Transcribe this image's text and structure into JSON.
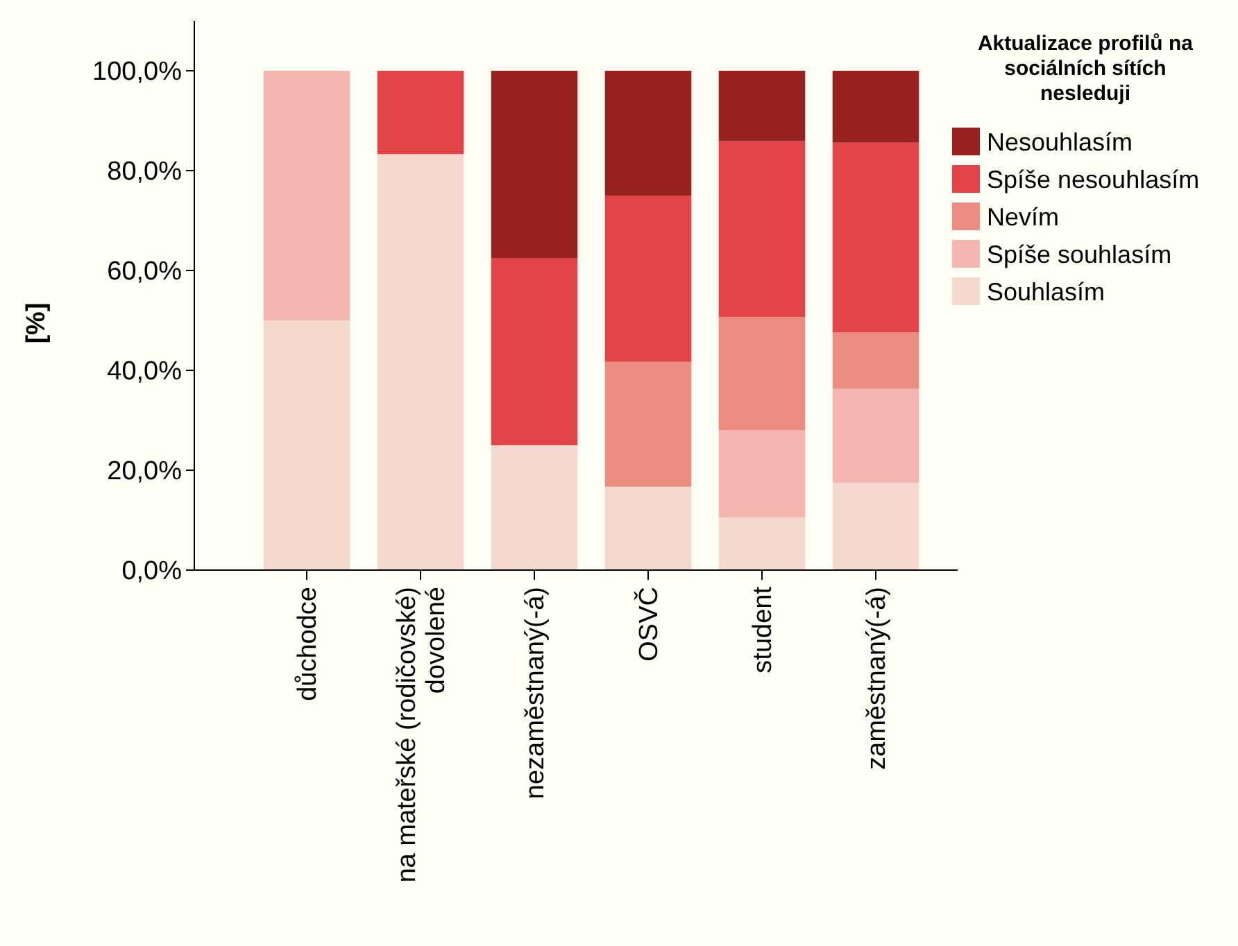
{
  "chart_data": {
    "type": "bar",
    "stacked": true,
    "ylabel": "[%]",
    "legend_title": "Aktualizace profilů na sociálních sítích nesleduji",
    "legend": "right",
    "grid": false,
    "categories": [
      "důchodce",
      "na mateřské (rodičovské) dovolené",
      "nezaměstnaný(-á)",
      "OSVČ",
      "student",
      "zaměstnaný(-á)"
    ],
    "ylim": [
      0,
      110
    ],
    "yticks": [
      {
        "value": 0,
        "label": "0,0%"
      },
      {
        "value": 20,
        "label": "20,0%"
      },
      {
        "value": 40,
        "label": "40,0%"
      },
      {
        "value": 60,
        "label": "60,0%"
      },
      {
        "value": 80,
        "label": "80,0%"
      },
      {
        "value": 100,
        "label": "100,0%"
      }
    ],
    "series": [
      {
        "name": "Souhlasím",
        "color": "#f6d9ce",
        "values": [
          50,
          83.3,
          25,
          16.7,
          10.5,
          17.5
        ]
      },
      {
        "name": "Spíše souhlasím",
        "color": "#f5b5b1",
        "values": [
          50,
          0,
          0,
          0,
          17.5,
          18.8
        ]
      },
      {
        "name": "Nevím",
        "color": "#ea8c80",
        "values": [
          0,
          0,
          0,
          25,
          22.7,
          11.3
        ]
      },
      {
        "name": "Spíše nesouhlasím",
        "color": "#e34448",
        "values": [
          0,
          16.7,
          37.5,
          33.3,
          35.2,
          38
        ]
      },
      {
        "name": "Nesouhlasím",
        "color": "#982220",
        "values": [
          0,
          0,
          37.5,
          25,
          14.1,
          14.4
        ]
      }
    ]
  }
}
